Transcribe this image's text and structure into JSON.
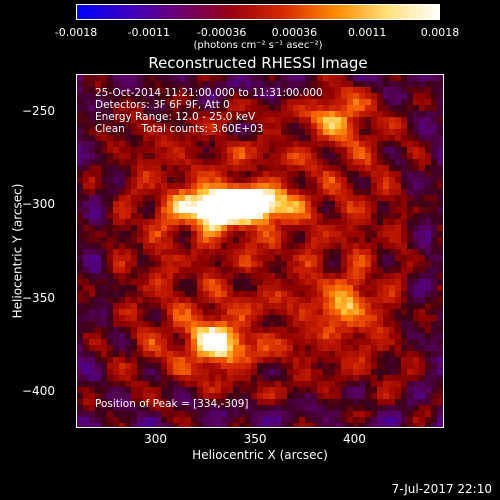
{
  "colorbar": {
    "ticks": [
      "-0.0018",
      "-0.0011",
      "-0.00036",
      "0.00036",
      "0.0011",
      "0.0018"
    ],
    "unit": "(photons cm⁻² s⁻¹ asec⁻²)",
    "colors": [
      "#0000ff",
      "#3b00c0",
      "#6d0070",
      "#9a0010",
      "#d82a00",
      "#ff8a00",
      "#ffe07a",
      "#ffffff"
    ]
  },
  "chart_data": {
    "type": "heatmap",
    "title": "Reconstructed RHESSI Image",
    "xlabel": "Heliocentric X (arcsec)",
    "ylabel": "Heliocentric Y (arcsec)",
    "xlim": [
      260,
      445
    ],
    "ylim": [
      -420,
      -230
    ],
    "xticks": [
      300,
      350,
      400
    ],
    "yticks": [
      -250,
      -300,
      -350,
      -400
    ],
    "zlim": [
      -0.0018,
      0.0018
    ],
    "sources": [
      {
        "x": 333,
        "y": -302,
        "value": 0.0018
      },
      {
        "x": 345,
        "y": -300,
        "value": 0.0016
      },
      {
        "x": 330,
        "y": -375,
        "value": 0.0015
      },
      {
        "x": 392,
        "y": -250,
        "value": 0.0012
      },
      {
        "x": 395,
        "y": -355,
        "value": 0.0009
      }
    ],
    "peak": [
      334,
      -309
    ]
  },
  "info": {
    "line1": "25-Oct-2014 11:21:00.000 to 11:31:00.000",
    "line2": "Detectors: 3F 6F 9F, Att 0",
    "line3": "Energy Range: 12.0 - 25.0 keV",
    "line4": "Clean     Total counts: 3.60E+03",
    "peak_text": "Position of Peak = [334,-309]"
  },
  "footer": "7-Jul-2017 22:10"
}
